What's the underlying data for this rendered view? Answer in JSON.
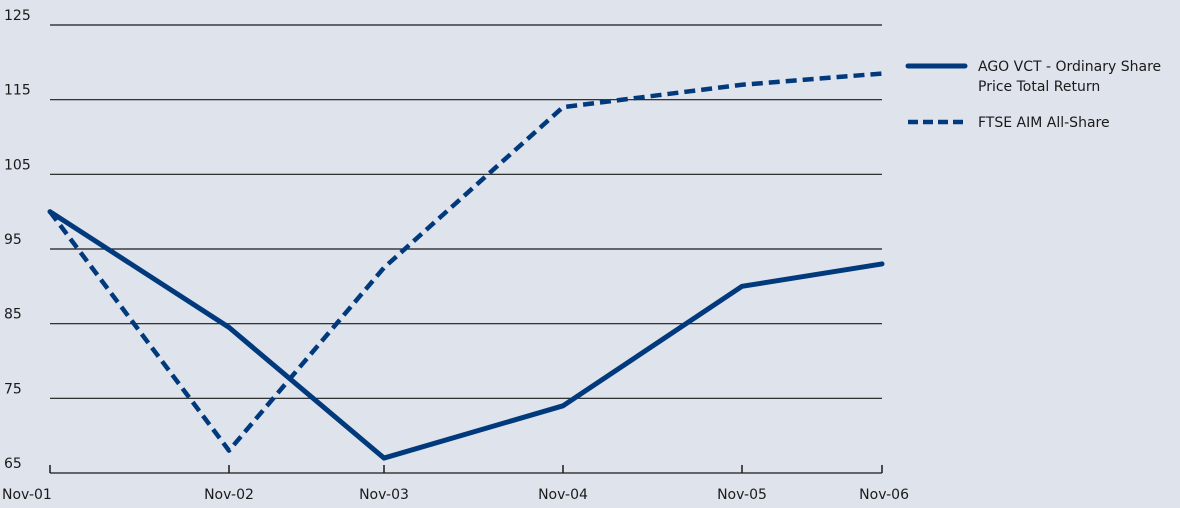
{
  "chart_data": {
    "type": "line",
    "title": "",
    "xlabel": "",
    "ylabel": "",
    "categories": [
      "Nov-01",
      "Nov-02",
      "Nov-03",
      "Nov-04",
      "Nov-05",
      "Nov-06"
    ],
    "ylim": [
      65,
      125
    ],
    "yticks": [
      65,
      75,
      85,
      95,
      105,
      115,
      125
    ],
    "grid": true,
    "legend_position": "top-right",
    "series": [
      {
        "name_lines": [
          "AGO VCT - Ordinary Share",
          "Price Total Return"
        ],
        "line_style": "solid",
        "color": "#003a7d",
        "x": [
          "Nov-01",
          "Nov-02",
          "Nov-03",
          "Nov-04",
          "Nov-05",
          "Nov-06"
        ],
        "values": [
          100,
          84.5,
          67,
          74,
          90,
          93
        ]
      },
      {
        "name_lines": [
          "FTSE AIM All-Share"
        ],
        "line_style": "dashed",
        "color": "#003a7d",
        "x": [
          "Nov-01",
          "Nov-02",
          "Nov-03",
          "Nov-04",
          "Nov-05",
          "Nov-06"
        ],
        "values": [
          100,
          68,
          92.5,
          114,
          117,
          118.5
        ]
      }
    ]
  }
}
